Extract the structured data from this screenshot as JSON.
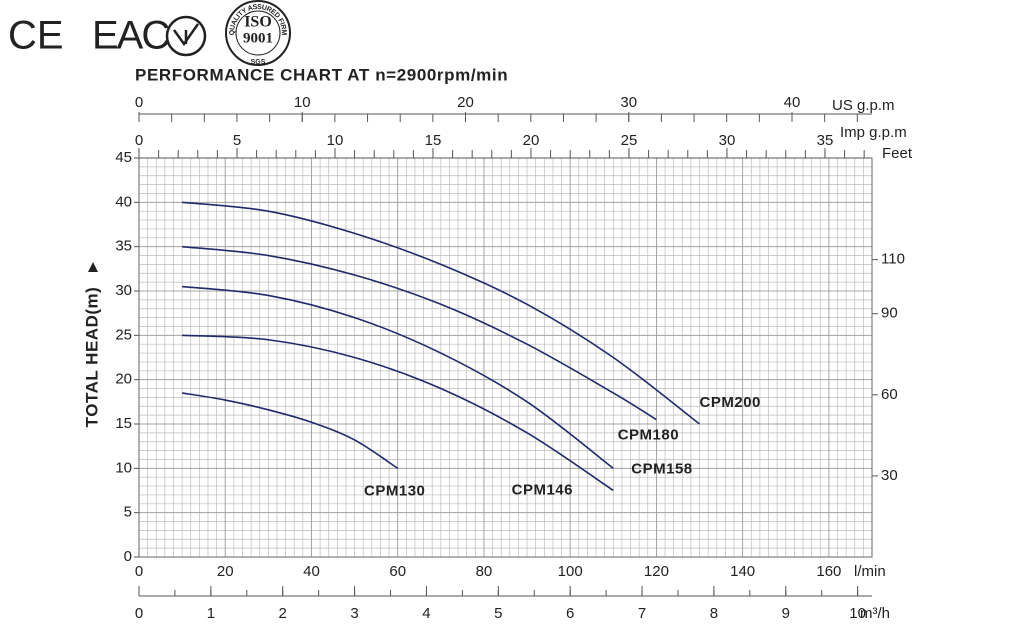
{
  "header": {
    "marks": [
      "CE",
      "EAC"
    ],
    "iso": [
      "ISO",
      "9001"
    ],
    "iso_ring": "QUALITY ASSURED FIRM",
    "iso_footer": "SGS"
  },
  "chart_data": {
    "type": "line",
    "title": "PERFORMANCE CHART AT n=2900rpm/min",
    "y_label": "TOTAL HEAD(m)",
    "x_label": "l/min",
    "y2_label": "Feet",
    "xlim": [
      0,
      170
    ],
    "xticks": [
      0,
      20,
      40,
      60,
      80,
      100,
      120,
      140,
      160
    ],
    "ylim": [
      0,
      45
    ],
    "yticks": [
      0,
      5,
      10,
      15,
      20,
      25,
      30,
      35,
      40,
      45
    ],
    "y2lim": [
      0,
      147.6
    ],
    "y2ticks": [
      30,
      60,
      90,
      110
    ],
    "secondary_x_axes": [
      {
        "label": "US g.p.m",
        "position": "top",
        "lim": [
          0,
          44.9
        ],
        "ticks": [
          0,
          10,
          20,
          30,
          40
        ]
      },
      {
        "label": "Imp g.p.m",
        "position": "top",
        "lim": [
          0,
          37.4
        ],
        "ticks": [
          0,
          5,
          10,
          15,
          20,
          25,
          30,
          35
        ]
      },
      {
        "label": "m³/h",
        "position": "bottom",
        "lim": [
          0,
          10.2
        ],
        "ticks": [
          0,
          1,
          2,
          3,
          4,
          5,
          6,
          7,
          8,
          9,
          10
        ]
      }
    ],
    "grid": true,
    "series": [
      {
        "name": "CPM200",
        "color": "#1f2a6b",
        "x": [
          10,
          30,
          50,
          70,
          90,
          110,
          130
        ],
        "values": [
          40,
          39,
          36.5,
          33,
          28.5,
          22.5,
          15
        ]
      },
      {
        "name": "CPM180",
        "color": "#1f2a6b",
        "x": [
          10,
          30,
          50,
          70,
          90,
          110,
          120
        ],
        "values": [
          35,
          34,
          31.8,
          28.5,
          24,
          18.5,
          15.5
        ]
      },
      {
        "name": "CPM158",
        "color": "#1f2a6b",
        "x": [
          10,
          30,
          50,
          70,
          90,
          110
        ],
        "values": [
          30.5,
          29.5,
          27,
          23,
          17.5,
          10
        ]
      },
      {
        "name": "CPM146",
        "color": "#1f2a6b",
        "x": [
          10,
          30,
          50,
          70,
          90,
          110
        ],
        "values": [
          25,
          24.5,
          22.5,
          19,
          14,
          7.5
        ]
      },
      {
        "name": "CPM130",
        "color": "#1f2a6b",
        "x": [
          10,
          20,
          30,
          40,
          50,
          60
        ],
        "values": [
          18.5,
          17.7,
          16.6,
          15.2,
          13.2,
          10
        ]
      }
    ]
  }
}
